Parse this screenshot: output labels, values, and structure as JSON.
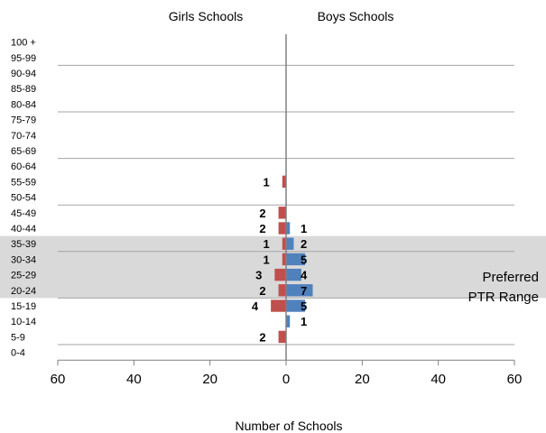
{
  "chart_data": {
    "type": "bar",
    "orientation": "horizontal",
    "header_labels": [
      "Girls Schools",
      "Boys Schools"
    ],
    "xlabel": "Number of Schools",
    "x_ticks": [
      60,
      40,
      20,
      0,
      20,
      40,
      60
    ],
    "xlim": [
      -60,
      60
    ],
    "grid": "horizontal",
    "categories": [
      "100 +",
      "95-99",
      "90-94",
      "85-89",
      "80-84",
      "75-79",
      "70-74",
      "65-69",
      "60-64",
      "55-59",
      "50-54",
      "45-49",
      "40-44",
      "35-39",
      "30-34",
      "25-29",
      "20-24",
      "15-19",
      "10-14",
      "5-9",
      "0-4"
    ],
    "series": [
      {
        "name": "Girls Schools",
        "side": "left",
        "color": "#c0504d",
        "values": [
          0,
          0,
          0,
          0,
          0,
          0,
          0,
          0,
          0,
          1,
          0,
          2,
          2,
          1,
          1,
          3,
          2,
          4,
          0,
          2,
          0
        ]
      },
      {
        "name": "Boys Schools",
        "side": "right",
        "color": "#4f81bd",
        "values": [
          0,
          0,
          0,
          0,
          0,
          0,
          0,
          0,
          0,
          0,
          0,
          0,
          1,
          2,
          5,
          4,
          7,
          5,
          1,
          0,
          0
        ]
      }
    ],
    "highlight": {
      "text_line1": "Preferred",
      "text_line2": "PTR Range",
      "from_category": "35-39",
      "to_category": "20-24",
      "color": "#d9d9d9"
    }
  }
}
